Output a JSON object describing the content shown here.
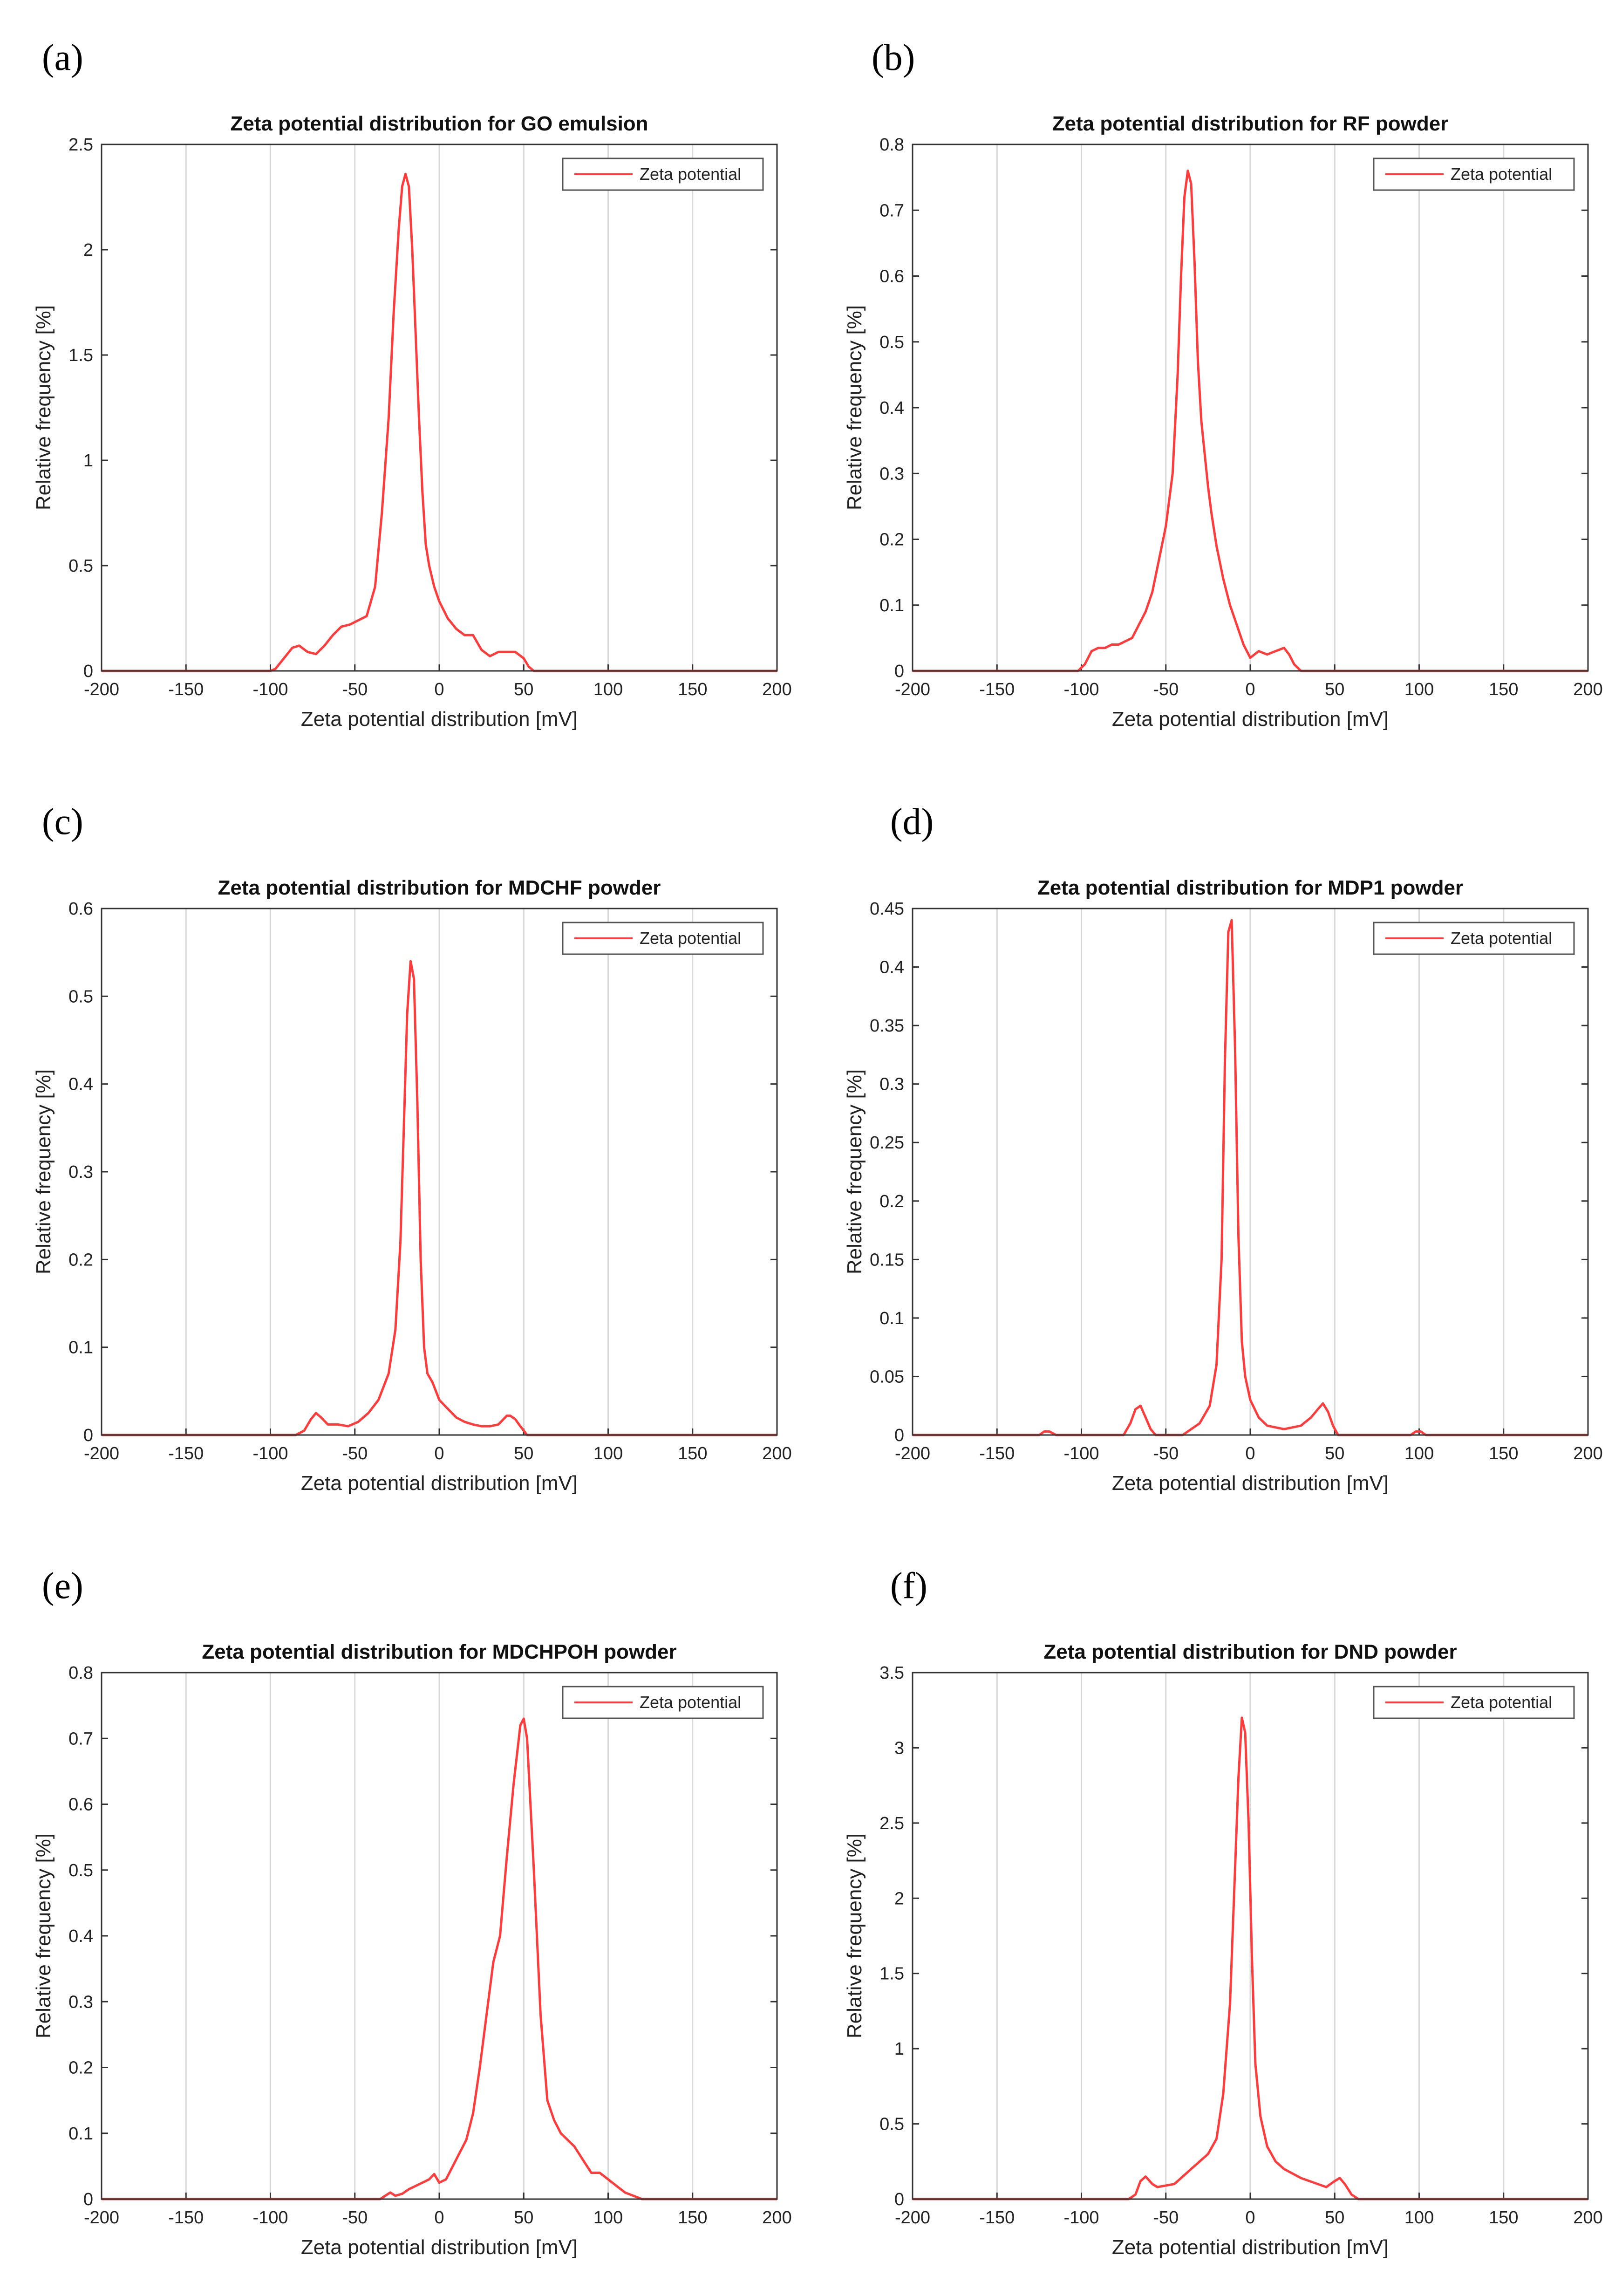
{
  "figure": {
    "line_color": "#ff3b3b",
    "grid_color": "#d9d9d9"
  },
  "chart_data": [
    {
      "panel": "(a)",
      "type": "line",
      "title": "Zeta potential distribution for GO emulsion",
      "xlabel": "Zeta potential distribution [mV]",
      "ylabel": "Relative frequency [%]",
      "xlim": [
        -200,
        200
      ],
      "ylim": [
        0,
        2.5
      ],
      "xticks": [
        "-200",
        "-150",
        "-100",
        "-50",
        "0",
        "50",
        "100",
        "150",
        "200"
      ],
      "yticks": [
        "0",
        "0.5",
        "1",
        "1.5",
        "2",
        "2.5"
      ],
      "legend": "Zeta potential",
      "legend_position": "top-right",
      "series": [
        {
          "name": "Zeta potential",
          "x": [
            -200,
            -100,
            -97,
            -92,
            -87,
            -83,
            -78,
            -73,
            -68,
            -63,
            -58,
            -53,
            -48,
            -43,
            -38,
            -34,
            -30,
            -27,
            -24,
            -22,
            -20,
            -18,
            -16,
            -14,
            -12,
            -10,
            -8,
            -6,
            -3,
            0,
            5,
            10,
            15,
            20,
            25,
            30,
            35,
            40,
            45,
            50,
            53,
            56,
            60,
            100,
            150,
            200
          ],
          "y": [
            0,
            0,
            0.01,
            0.06,
            0.11,
            0.12,
            0.09,
            0.08,
            0.12,
            0.17,
            0.21,
            0.22,
            0.24,
            0.26,
            0.4,
            0.75,
            1.2,
            1.7,
            2.1,
            2.3,
            2.36,
            2.3,
            2.0,
            1.6,
            1.2,
            0.85,
            0.6,
            0.5,
            0.4,
            0.33,
            0.25,
            0.2,
            0.17,
            0.17,
            0.1,
            0.07,
            0.09,
            0.09,
            0.09,
            0.06,
            0.02,
            0.0,
            0,
            0,
            0,
            0
          ]
        }
      ]
    },
    {
      "panel": "(b)",
      "type": "line",
      "title": "Zeta potential distribution for RF powder",
      "xlabel": "Zeta potential distribution [mV]",
      "ylabel": "Relative frequency [%]",
      "xlim": [
        -200,
        200
      ],
      "ylim": [
        0,
        0.8
      ],
      "xticks": [
        "-200",
        "-150",
        "-100",
        "-50",
        "0",
        "50",
        "100",
        "150",
        "200"
      ],
      "yticks": [
        "0",
        "0.1",
        "0.2",
        "0.3",
        "0.4",
        "0.5",
        "0.6",
        "0.7",
        "0.8"
      ],
      "legend": "Zeta potential",
      "legend_position": "top-right",
      "series": [
        {
          "name": "Zeta potential",
          "x": [
            -200,
            -102,
            -98,
            -94,
            -90,
            -86,
            -82,
            -78,
            -74,
            -70,
            -66,
            -62,
            -58,
            -54,
            -50,
            -46,
            -43,
            -41,
            -39,
            -37,
            -35,
            -33,
            -31,
            -29,
            -27,
            -25,
            -23,
            -20,
            -16,
            -12,
            -8,
            -4,
            0,
            5,
            10,
            15,
            20,
            23,
            26,
            30,
            35,
            100,
            150,
            200
          ],
          "y": [
            0,
            0,
            0.01,
            0.03,
            0.035,
            0.035,
            0.04,
            0.04,
            0.045,
            0.05,
            0.07,
            0.09,
            0.12,
            0.17,
            0.22,
            0.3,
            0.45,
            0.6,
            0.72,
            0.76,
            0.74,
            0.62,
            0.47,
            0.38,
            0.33,
            0.28,
            0.24,
            0.19,
            0.14,
            0.1,
            0.07,
            0.04,
            0.02,
            0.03,
            0.025,
            0.03,
            0.035,
            0.025,
            0.01,
            0.0,
            0,
            0,
            0,
            0
          ]
        }
      ]
    },
    {
      "panel": "(c)",
      "type": "line",
      "title": "Zeta potential distribution for MDCHF powder",
      "xlabel": "Zeta potential distribution [mV]",
      "ylabel": "Relative frequency [%]",
      "xlim": [
        -200,
        200
      ],
      "ylim": [
        0,
        0.6
      ],
      "xticks": [
        "-200",
        "-150",
        "-100",
        "-50",
        "0",
        "50",
        "100",
        "150",
        "200"
      ],
      "yticks": [
        "0",
        "0.1",
        "0.2",
        "0.3",
        "0.4",
        "0.5",
        "0.6"
      ],
      "legend": "Zeta potential",
      "legend_position": "top-right",
      "series": [
        {
          "name": "Zeta potential",
          "x": [
            -200,
            -85,
            -80,
            -76,
            -73,
            -70,
            -66,
            -60,
            -54,
            -48,
            -42,
            -36,
            -30,
            -26,
            -23,
            -21,
            -19,
            -17,
            -15,
            -13,
            -11,
            -9,
            -7,
            -4,
            0,
            5,
            10,
            15,
            20,
            25,
            30,
            35,
            40,
            42,
            45,
            48,
            52,
            100,
            150,
            200
          ],
          "y": [
            0,
            0,
            0.005,
            0.018,
            0.025,
            0.02,
            0.012,
            0.012,
            0.01,
            0.015,
            0.025,
            0.04,
            0.07,
            0.12,
            0.22,
            0.35,
            0.48,
            0.54,
            0.52,
            0.38,
            0.2,
            0.1,
            0.07,
            0.06,
            0.04,
            0.03,
            0.02,
            0.015,
            0.012,
            0.01,
            0.01,
            0.012,
            0.022,
            0.022,
            0.018,
            0.01,
            0.0,
            0,
            0,
            0
          ]
        }
      ]
    },
    {
      "panel": "(d)",
      "type": "line",
      "title": "Zeta potential distribution for MDP1 powder",
      "xlabel": "Zeta potential distribution [mV]",
      "ylabel": "Relative frequency [%]",
      "xlim": [
        -200,
        200
      ],
      "ylim": [
        0,
        0.45
      ],
      "xticks": [
        "-200",
        "-150",
        "-100",
        "-50",
        "0",
        "50",
        "100",
        "150",
        "200"
      ],
      "yticks": [
        "0",
        "0.05",
        "0.1",
        "0.15",
        "0.2",
        "0.25",
        "0.3",
        "0.35",
        "0.4",
        "0.45"
      ],
      "legend": "Zeta potential",
      "legend_position": "top-right",
      "series": [
        {
          "name": "Zeta potential",
          "x": [
            -200,
            -125,
            -122,
            -119,
            -115,
            -75,
            -71,
            -68,
            -65,
            -62,
            -59,
            -56,
            -40,
            -30,
            -24,
            -20,
            -17,
            -15,
            -13,
            -11,
            -9,
            -7,
            -5,
            -3,
            0,
            5,
            10,
            20,
            30,
            36,
            40,
            43,
            46,
            49,
            52,
            95,
            98,
            101,
            104,
            150,
            200
          ],
          "y": [
            0,
            0,
            0.003,
            0.003,
            0,
            0,
            0.01,
            0.022,
            0.025,
            0.015,
            0.005,
            0.0,
            0.0,
            0.01,
            0.025,
            0.06,
            0.15,
            0.32,
            0.43,
            0.44,
            0.33,
            0.17,
            0.08,
            0.05,
            0.03,
            0.015,
            0.008,
            0.005,
            0.008,
            0.015,
            0.022,
            0.027,
            0.02,
            0.008,
            0.0,
            0,
            0.003,
            0.003,
            0,
            0,
            0
          ]
        }
      ]
    },
    {
      "panel": "(e)",
      "type": "line",
      "title": "Zeta potential distribution for MDCHPOH powder",
      "xlabel": "Zeta potential distribution [mV]",
      "ylabel": "Relative frequency [%]",
      "xlim": [
        -200,
        200
      ],
      "ylim": [
        0,
        0.8
      ],
      "xticks": [
        "-200",
        "-150",
        "-100",
        "-50",
        "0",
        "50",
        "100",
        "150",
        "200"
      ],
      "yticks": [
        "0",
        "0.1",
        "0.2",
        "0.3",
        "0.4",
        "0.5",
        "0.6",
        "0.7",
        "0.8"
      ],
      "legend": "Zeta potential",
      "legend_position": "top-right",
      "series": [
        {
          "name": "Zeta potential",
          "x": [
            -200,
            -35,
            -32,
            -29,
            -26,
            -22,
            -18,
            -14,
            -10,
            -6,
            -3,
            0,
            4,
            8,
            12,
            16,
            20,
            24,
            28,
            32,
            36,
            40,
            44,
            48,
            50,
            52,
            56,
            60,
            64,
            68,
            72,
            76,
            80,
            85,
            90,
            95,
            100,
            105,
            110,
            115,
            120,
            200
          ],
          "y": [
            0,
            0,
            0.005,
            0.01,
            0.005,
            0.008,
            0.015,
            0.02,
            0.025,
            0.03,
            0.038,
            0.025,
            0.03,
            0.05,
            0.07,
            0.09,
            0.13,
            0.2,
            0.28,
            0.36,
            0.4,
            0.52,
            0.63,
            0.72,
            0.73,
            0.7,
            0.5,
            0.28,
            0.15,
            0.12,
            0.1,
            0.09,
            0.08,
            0.06,
            0.04,
            0.04,
            0.03,
            0.02,
            0.01,
            0.005,
            0.0,
            0
          ]
        }
      ]
    },
    {
      "panel": "(f)",
      "type": "line",
      "title": "Zeta potential distribution for DND powder",
      "xlabel": "Zeta potential distribution  [mV]",
      "ylabel": "Relative frequency [%]",
      "xlim": [
        -200,
        200
      ],
      "ylim": [
        0,
        3.5
      ],
      "xticks": [
        "-200",
        "-150",
        "-100",
        "-50",
        "0",
        "50",
        "100",
        "150",
        "200"
      ],
      "yticks": [
        "0",
        "0.5",
        "1",
        "1.5",
        "2",
        "2.5",
        "3",
        "3.5"
      ],
      "legend": "Zeta potential",
      "legend_position": "top-right",
      "series": [
        {
          "name": "Zeta potential",
          "x": [
            -200,
            -72,
            -68,
            -65,
            -62,
            -58,
            -55,
            -50,
            -45,
            -40,
            -35,
            -30,
            -25,
            -20,
            -16,
            -12,
            -9,
            -7,
            -5,
            -3,
            -1,
            1,
            3,
            6,
            10,
            15,
            20,
            25,
            30,
            35,
            40,
            45,
            50,
            53,
            56,
            60,
            64,
            200
          ],
          "y": [
            0,
            0,
            0.03,
            0.12,
            0.15,
            0.1,
            0.08,
            0.09,
            0.1,
            0.15,
            0.2,
            0.25,
            0.3,
            0.4,
            0.7,
            1.3,
            2.2,
            2.8,
            3.2,
            3.1,
            2.5,
            1.6,
            0.9,
            0.55,
            0.35,
            0.25,
            0.2,
            0.17,
            0.14,
            0.12,
            0.1,
            0.08,
            0.12,
            0.14,
            0.1,
            0.03,
            0.0,
            0
          ]
        }
      ]
    }
  ]
}
